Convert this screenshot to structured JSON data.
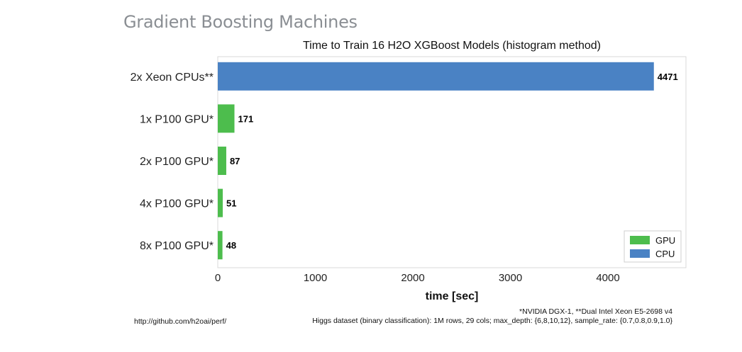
{
  "slide": {
    "title": "Gradient Boosting Machines"
  },
  "footer": {
    "link": "http://github.com/h2oai/perf/",
    "note_line1": "*NVIDIA DGX-1, **Dual Intel Xeon E5-2698 v4",
    "note_line2": "Higgs dataset (binary classification): 1M rows, 29 cols; max_depth: {6,8,10,12}, sample_rate: {0.7,0.8,0.9,1.0}"
  },
  "chart_data": {
    "type": "bar",
    "orientation": "horizontal",
    "title": "Time to Train 16 H2O XGBoost Models (histogram method)",
    "xlabel": "time [sec]",
    "ylabel": "",
    "xlim": [
      0,
      4800
    ],
    "xticks": [
      0,
      1000,
      2000,
      3000,
      4000
    ],
    "grid": false,
    "legend_position": "bottom-right",
    "categories": [
      "2x Xeon CPUs**",
      "1x P100 GPU*",
      "2x P100 GPU*",
      "4x P100 GPU*",
      "8x P100 GPU*"
    ],
    "values": [
      4471,
      171,
      87,
      51,
      48
    ],
    "data_labels": [
      "4471",
      "171",
      "87",
      "51",
      "48"
    ],
    "bar_series": [
      "CPU",
      "GPU",
      "GPU",
      "GPU",
      "GPU"
    ],
    "legend": [
      {
        "name": "GPU",
        "color": "#4dbd4d"
      },
      {
        "name": "CPU",
        "color": "#4a82c4"
      }
    ]
  }
}
